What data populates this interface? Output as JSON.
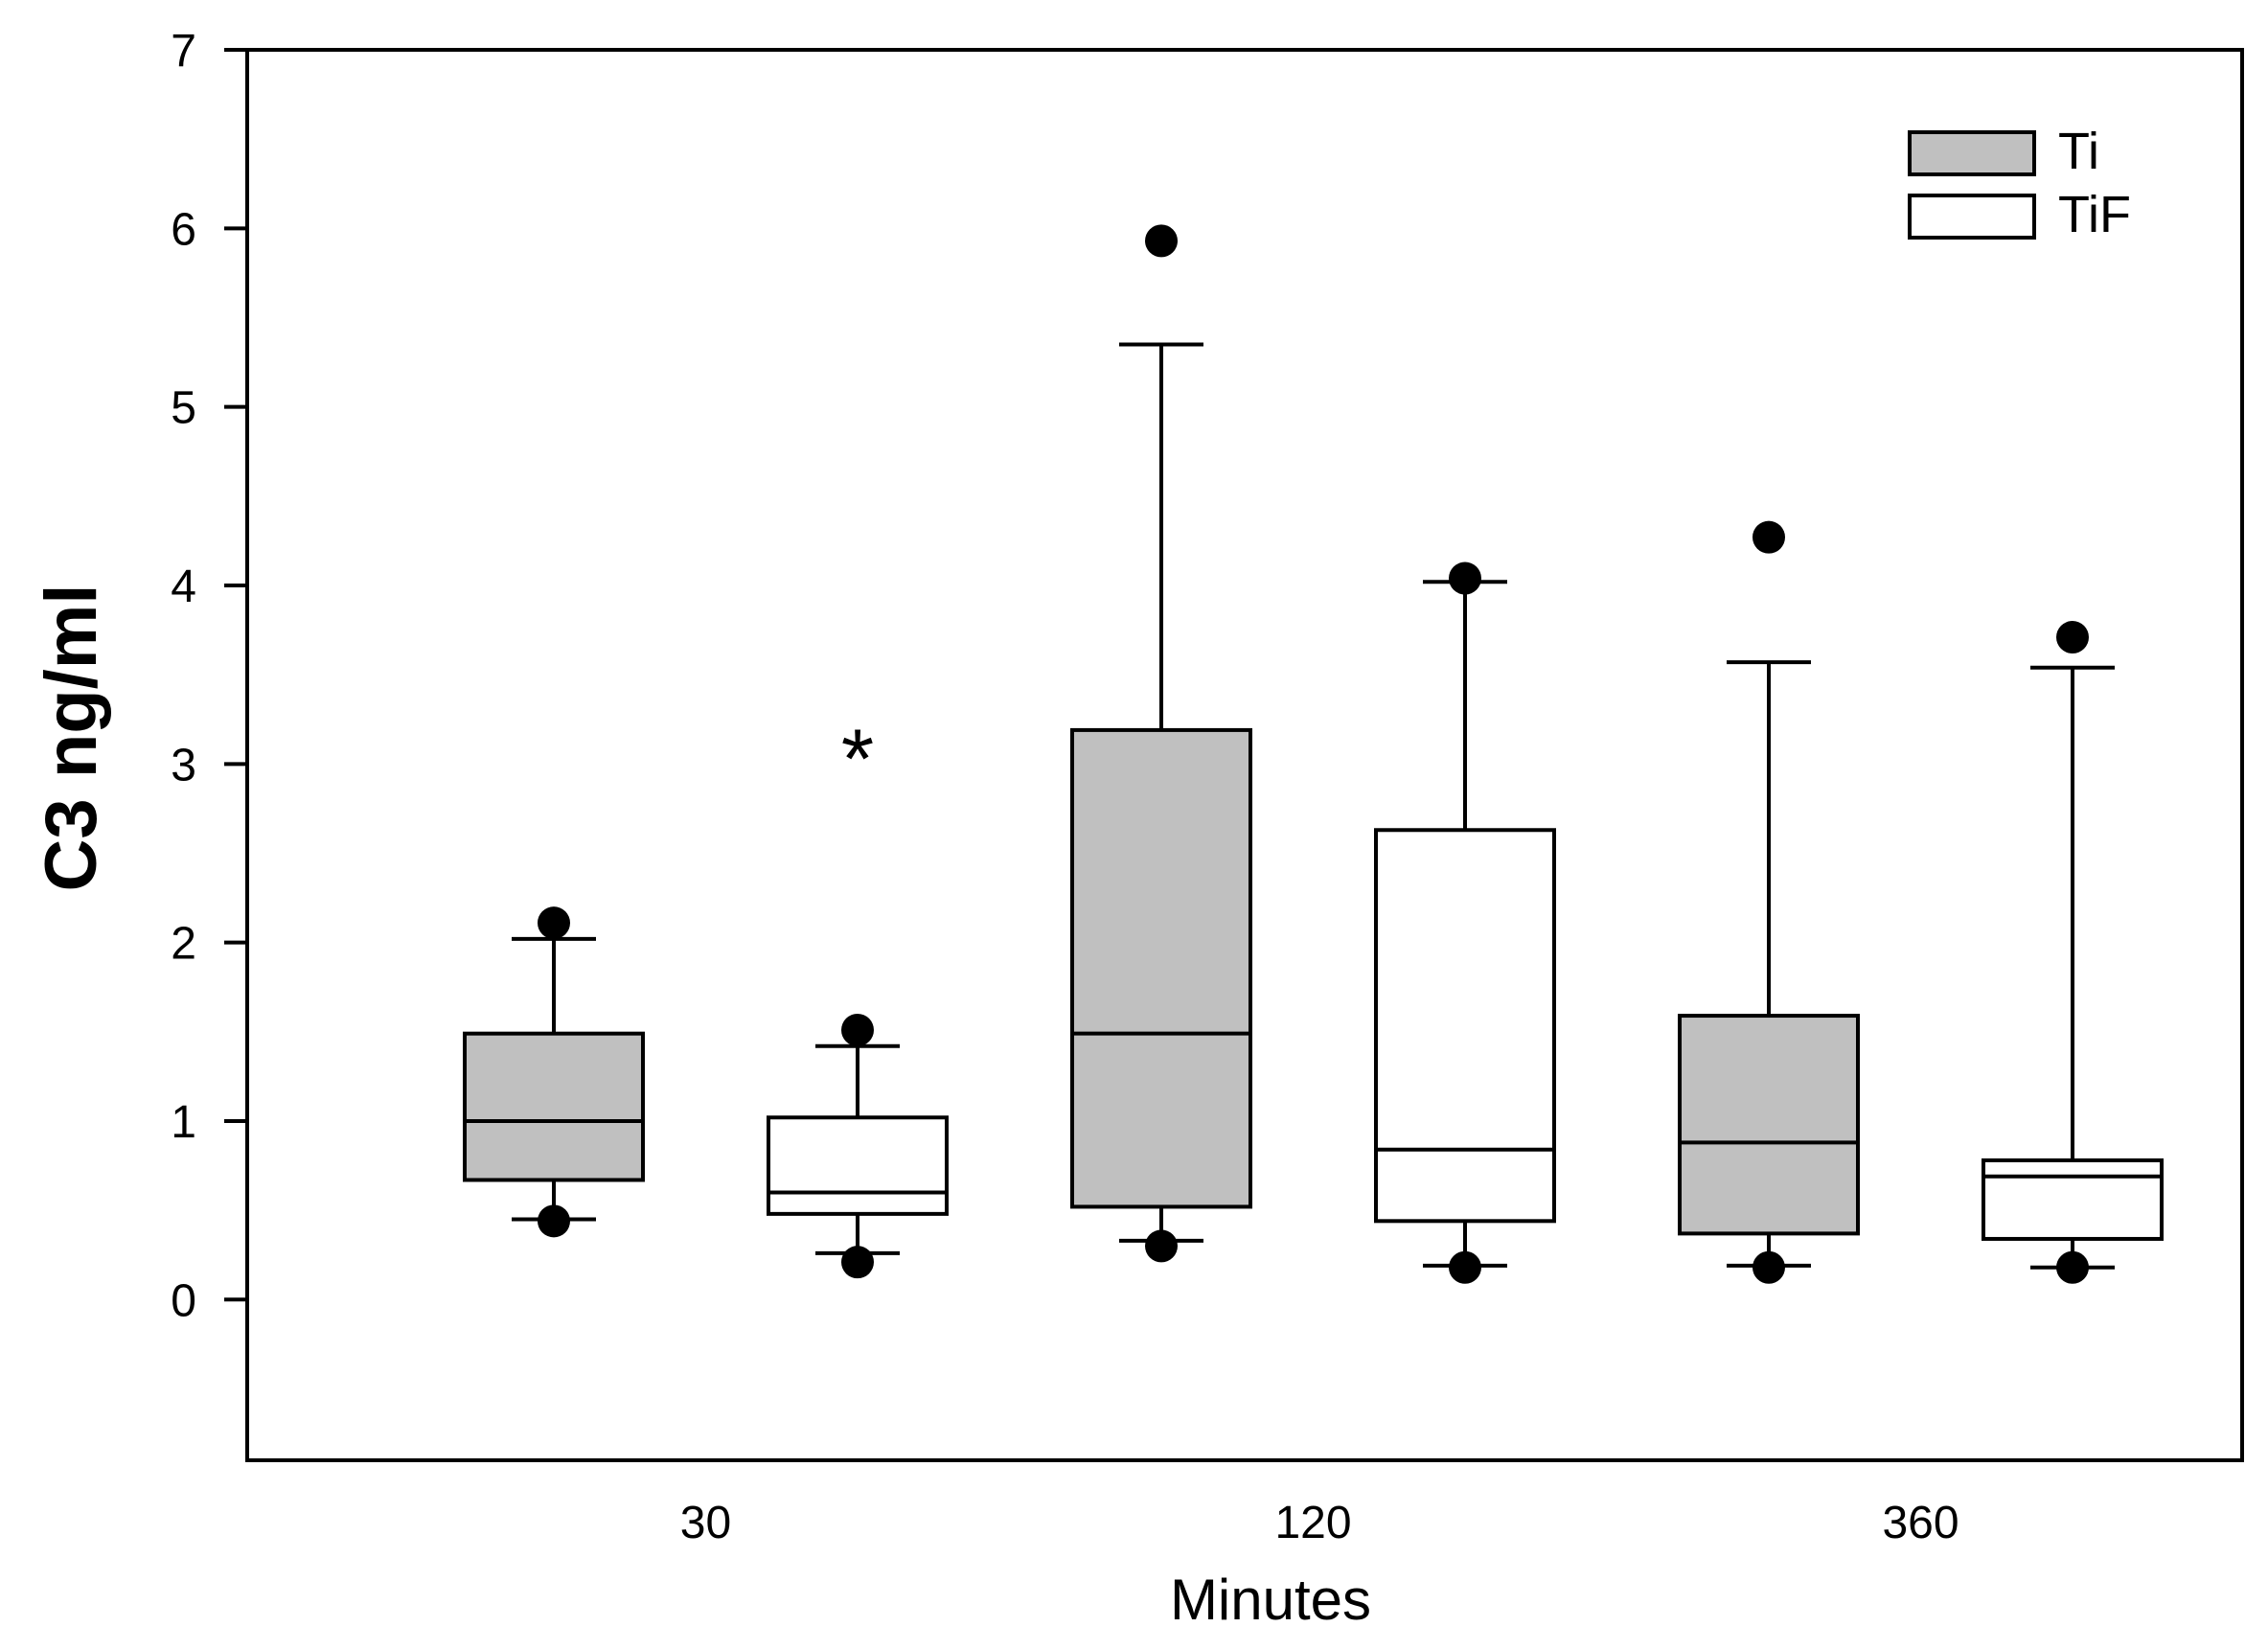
{
  "chart_data": {
    "type": "box",
    "xlabel": "Minutes",
    "ylabel": "C3 ng/ml",
    "ylim": [
      -0.9,
      7
    ],
    "yticks": [
      0,
      1,
      2,
      3,
      4,
      5,
      6,
      7
    ],
    "x_tick_labels": [
      "30",
      "120",
      "360"
    ],
    "legend": {
      "position": "top-right",
      "entries": [
        {
          "name": "Ti",
          "fill": "#c0c0c0"
        },
        {
          "name": "TiF",
          "fill": "#ffffff"
        }
      ]
    },
    "groups": [
      {
        "time": "30",
        "series": "Ti",
        "slot": 0,
        "whisker_low": 0.45,
        "q1": 0.67,
        "median": 1.0,
        "q3": 1.49,
        "whisker_high": 2.02,
        "outliers": [
          2.11,
          0.44
        ]
      },
      {
        "time": "30",
        "series": "TiF",
        "slot": 1,
        "whisker_low": 0.26,
        "q1": 0.48,
        "median": 0.6,
        "q3": 1.02,
        "whisker_high": 1.42,
        "outliers": [
          1.51,
          0.21
        ]
      },
      {
        "time": "120",
        "series": "Ti",
        "slot": 2,
        "whisker_low": 0.33,
        "q1": 0.52,
        "median": 1.49,
        "q3": 3.19,
        "whisker_high": 5.35,
        "outliers": [
          5.93,
          0.3
        ]
      },
      {
        "time": "120",
        "series": "TiF",
        "slot": 3,
        "whisker_low": 0.19,
        "q1": 0.44,
        "median": 0.84,
        "q3": 2.63,
        "whisker_high": 4.02,
        "outliers": [
          4.04,
          0.18
        ]
      },
      {
        "time": "360",
        "series": "Ti",
        "slot": 4,
        "whisker_low": 0.19,
        "q1": 0.37,
        "median": 0.88,
        "q3": 1.59,
        "whisker_high": 3.57,
        "outliers": [
          4.27,
          0.18
        ]
      },
      {
        "time": "360",
        "series": "TiF",
        "slot": 5,
        "whisker_low": 0.18,
        "q1": 0.34,
        "median": 0.69,
        "q3": 0.78,
        "whisker_high": 3.54,
        "outliers": [
          3.71,
          0.18
        ]
      }
    ],
    "annotations": [
      {
        "text": "*",
        "slot": 1,
        "y": 3.05
      }
    ],
    "colors": {
      "Ti": "#c0c0c0",
      "TiF": "#ffffff",
      "line": "#000000"
    }
  }
}
